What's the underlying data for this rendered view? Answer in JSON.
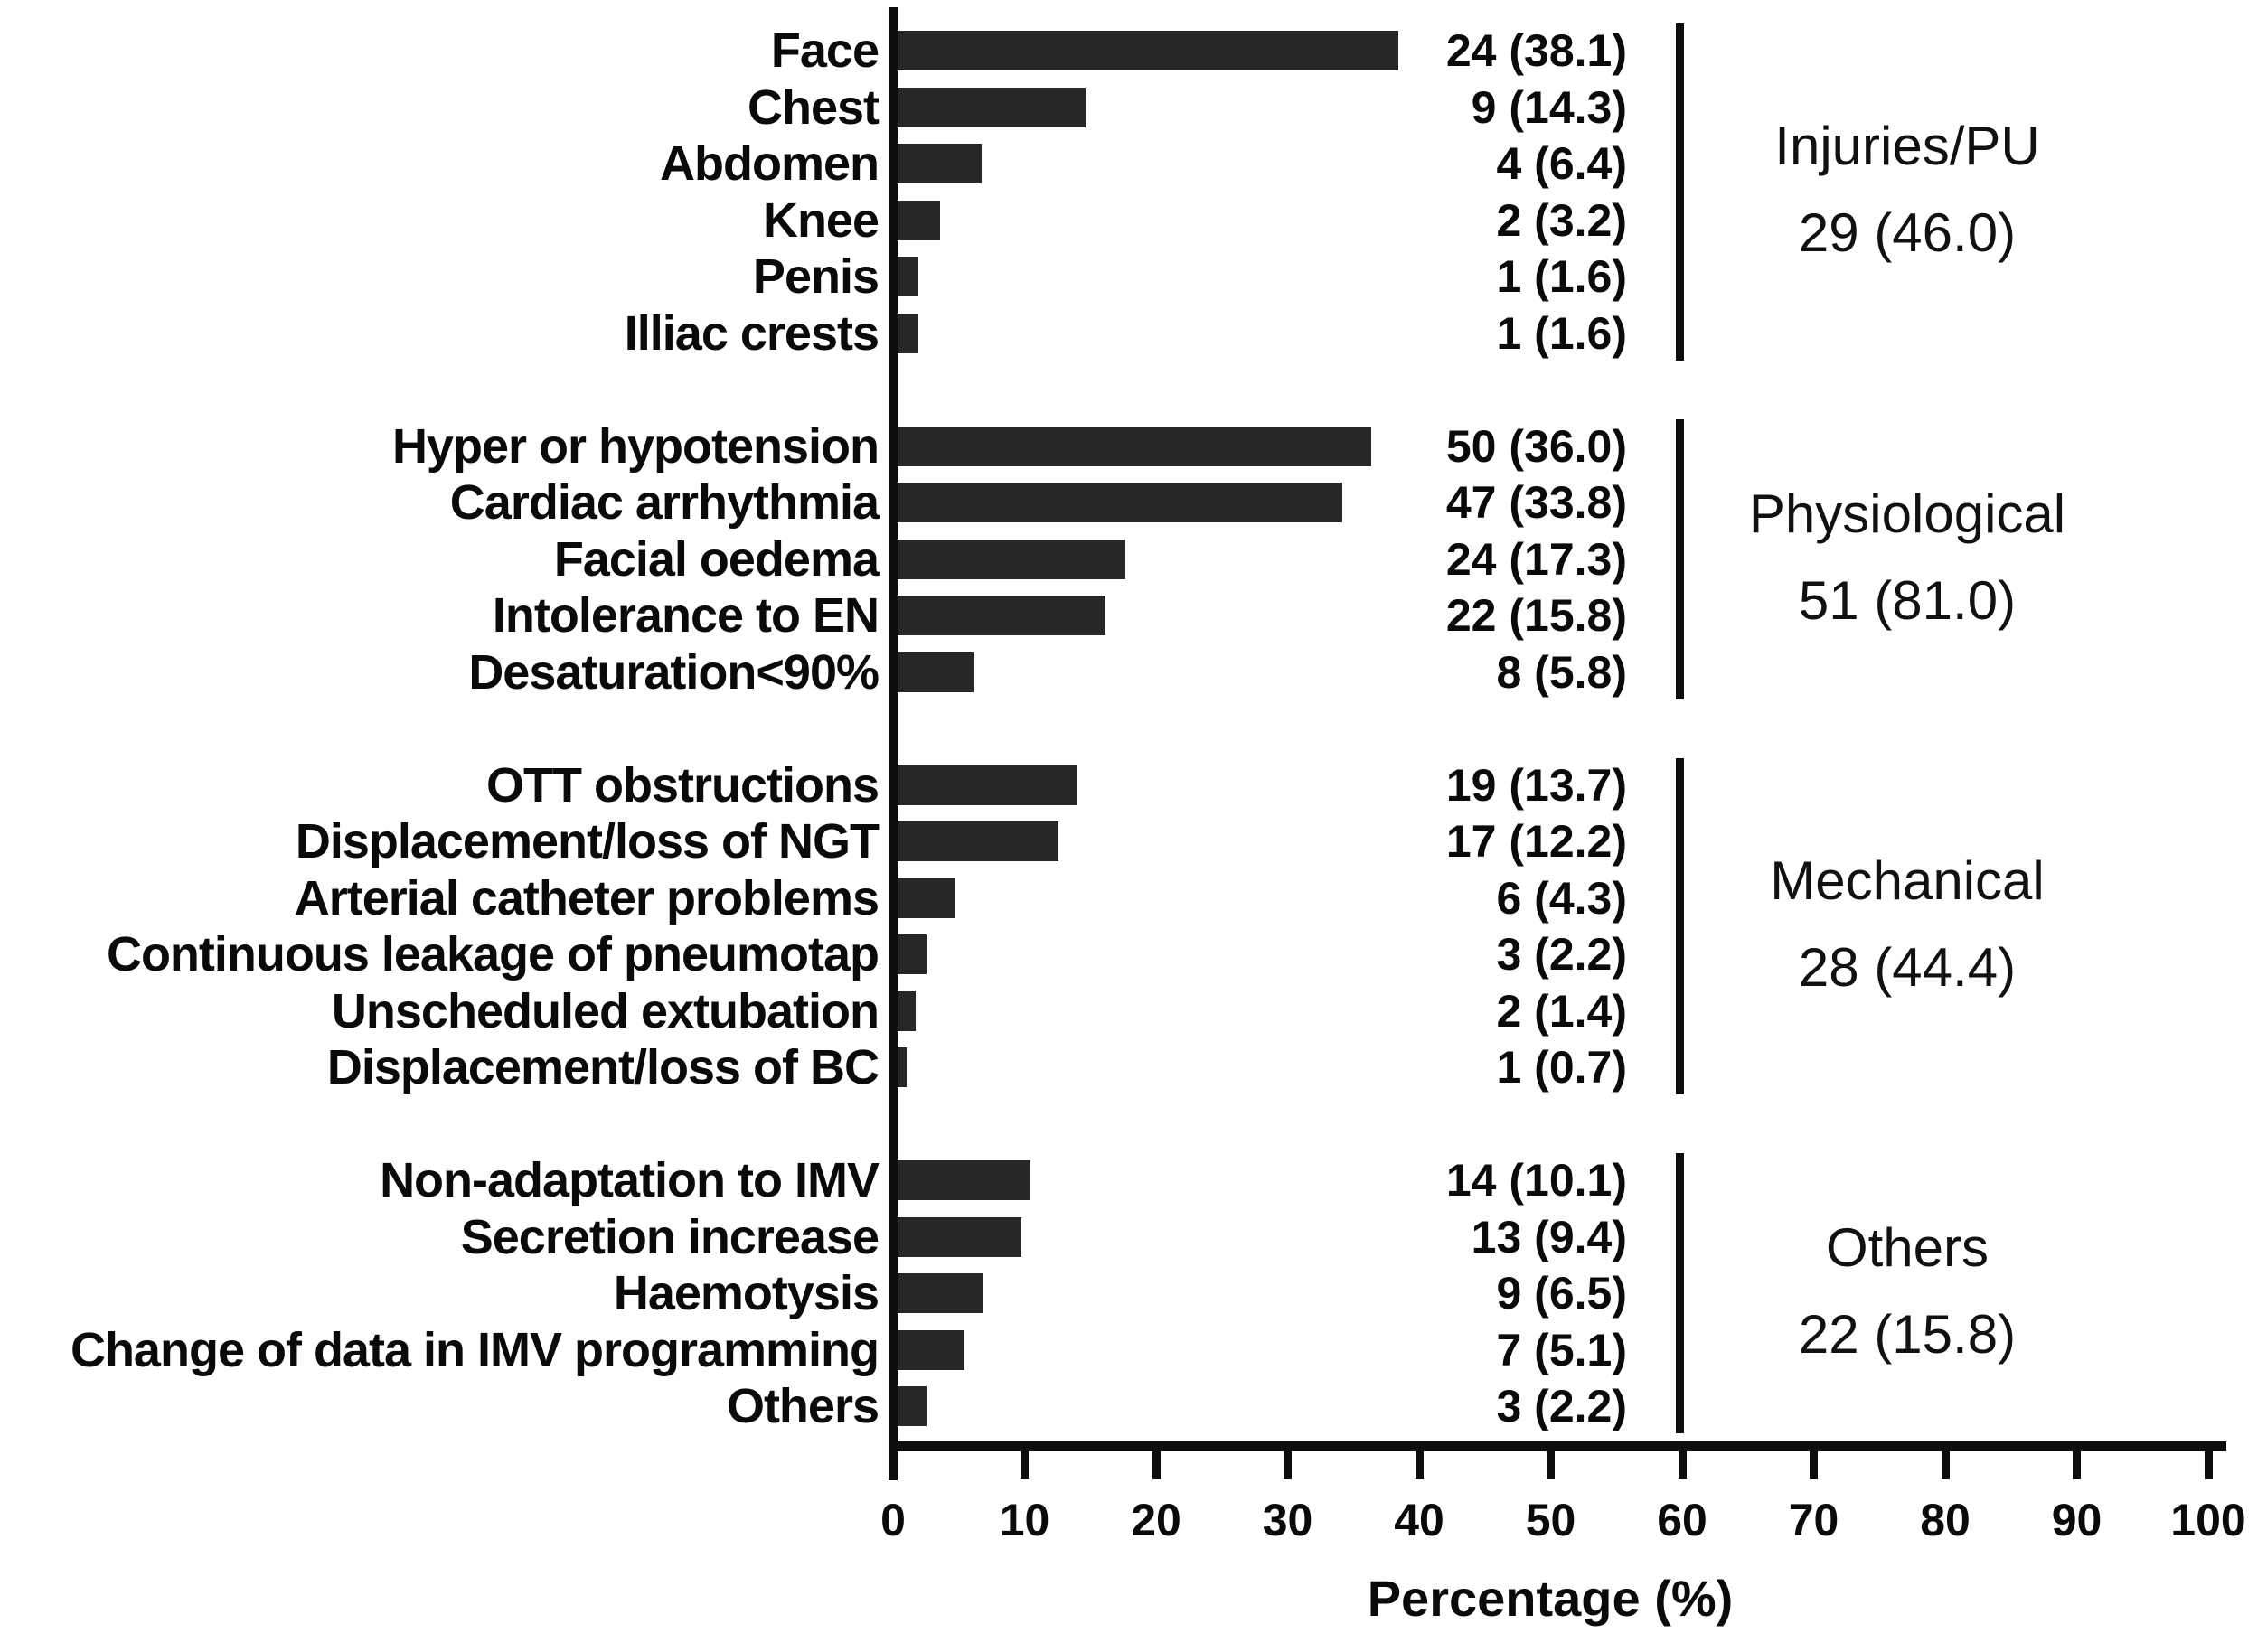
{
  "chart_data": {
    "type": "bar",
    "orientation": "horizontal",
    "title": "",
    "xlabel": "Percentage (%)",
    "xlim": [
      0,
      100
    ],
    "x_ticks": [
      0,
      10,
      20,
      30,
      40,
      50,
      60,
      70,
      80,
      90,
      100
    ],
    "grid": false,
    "legend": false,
    "bar_color": "#272727",
    "axis_color": "#0d0d0d",
    "text_color": "#0a0a0a",
    "groups": [
      {
        "name": "Injuries/PU",
        "total_label": "29 (46.0)",
        "items": [
          {
            "category": "Face",
            "count": 24,
            "pct": 38.1,
            "label": "24 (38.1)"
          },
          {
            "category": "Chest",
            "count": 9,
            "pct": 14.3,
            "label": "9 (14.3)"
          },
          {
            "category": "Abdomen",
            "count": 4,
            "pct": 6.4,
            "label": "4 (6.4)"
          },
          {
            "category": "Knee",
            "count": 2,
            "pct": 3.2,
            "label": "2 (3.2)"
          },
          {
            "category": "Penis",
            "count": 1,
            "pct": 1.6,
            "label": "1 (1.6)"
          },
          {
            "category": "Illiac crests",
            "count": 1,
            "pct": 1.6,
            "label": "1 (1.6)"
          }
        ]
      },
      {
        "name": "Physiological",
        "total_label": "51 (81.0)",
        "items": [
          {
            "category": "Hyper or hypotension",
            "count": 50,
            "pct": 36.0,
            "label": "50 (36.0)"
          },
          {
            "category": "Cardiac arrhythmia",
            "count": 47,
            "pct": 33.8,
            "label": "47 (33.8)"
          },
          {
            "category": "Facial oedema",
            "count": 24,
            "pct": 17.3,
            "label": "24 (17.3)"
          },
          {
            "category": "Intolerance to EN",
            "count": 22,
            "pct": 15.8,
            "label": "22 (15.8)"
          },
          {
            "category": "Desaturation<90%",
            "count": 8,
            "pct": 5.8,
            "label": "8 (5.8)"
          }
        ]
      },
      {
        "name": "Mechanical",
        "total_label": "28 (44.4)",
        "items": [
          {
            "category": "OTT obstructions",
            "count": 19,
            "pct": 13.7,
            "label": "19 (13.7)"
          },
          {
            "category": "Displacement/loss of NGT",
            "count": 17,
            "pct": 12.2,
            "label": "17 (12.2)"
          },
          {
            "category": "Arterial catheter problems",
            "count": 6,
            "pct": 4.3,
            "label": "6 (4.3)"
          },
          {
            "category": "Continuous leakage of pneumotap",
            "count": 3,
            "pct": 2.2,
            "label": "3 (2.2)"
          },
          {
            "category": "Unscheduled extubation",
            "count": 2,
            "pct": 1.4,
            "label": "2 (1.4)"
          },
          {
            "category": "Displacement/loss of BC",
            "count": 1,
            "pct": 0.7,
            "label": "1 (0.7)"
          }
        ]
      },
      {
        "name": "Others",
        "total_label": "22 (15.8)",
        "items": [
          {
            "category": "Non-adaptation to IMV",
            "count": 14,
            "pct": 10.1,
            "label": "14 (10.1)"
          },
          {
            "category": "Secretion increase",
            "count": 13,
            "pct": 9.4,
            "label": "13 (9.4)"
          },
          {
            "category": "Haemotysis",
            "count": 9,
            "pct": 6.5,
            "label": "9 (6.5)"
          },
          {
            "category": "Change of data in IMV programming",
            "count": 7,
            "pct": 5.1,
            "label": "7 (5.1)"
          },
          {
            "category": "Others",
            "count": 3,
            "pct": 2.2,
            "label": "3 (2.2)"
          }
        ]
      }
    ]
  }
}
